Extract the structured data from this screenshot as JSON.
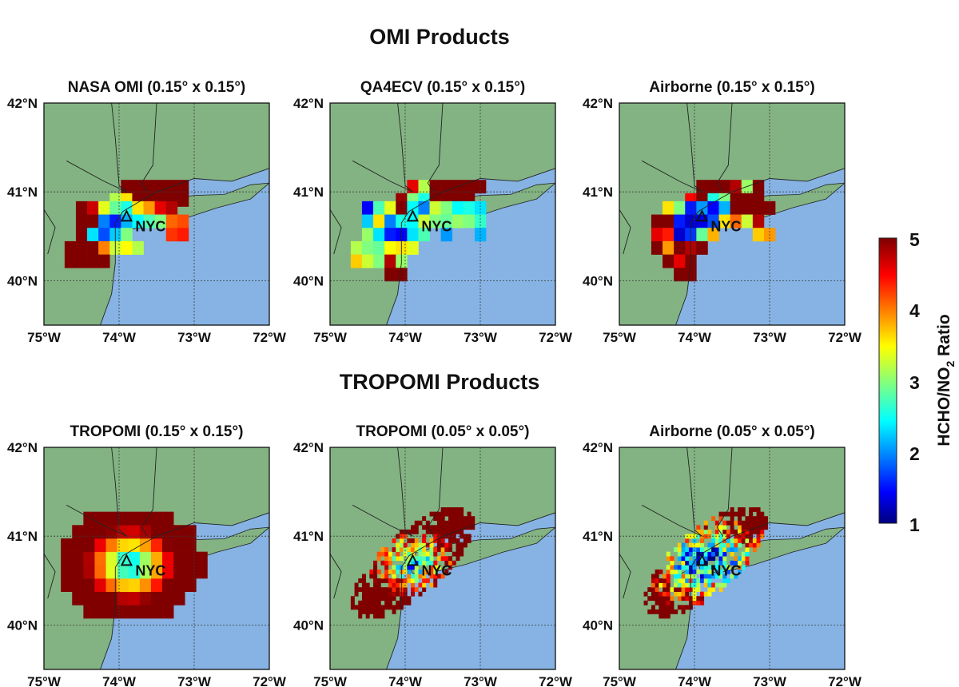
{
  "figure": {
    "colors": {
      "land": "#83b383",
      "water": "#86b3e3",
      "gridline": "#3a3a3a",
      "border": "#222222"
    }
  },
  "sections": [
    {
      "title": "OMI Products"
    },
    {
      "title": "TROPOMI Products"
    }
  ],
  "colorbar": {
    "label_main": "HCHO/NO",
    "label_sub": "2",
    "label_tail": " Ratio",
    "min": 1,
    "max": 5,
    "ticks": [
      "5",
      "4",
      "3",
      "2",
      "1"
    ],
    "colormap": "jet"
  },
  "chart_data": [
    {
      "type": "heatmap",
      "title": "NASA OMI (0.15° x 0.15°)",
      "xlim": [
        -75,
        -72
      ],
      "ylim": [
        39.5,
        42
      ],
      "x_ticks": [
        "75°W",
        "74°W",
        "73°W",
        "72°W"
      ],
      "y_ticks": [
        "42°N",
        "41°N",
        "40°N"
      ],
      "marker_label": "NYC",
      "marker": {
        "lon": -73.9,
        "lat": 40.72
      },
      "cell_deg": 0.15,
      "cells": [
        [
          -73.9,
          41.06,
          5
        ],
        [
          -73.75,
          41.06,
          5
        ],
        [
          -73.6,
          41.06,
          5
        ],
        [
          -73.45,
          41.06,
          5
        ],
        [
          -73.3,
          41.06,
          5
        ],
        [
          -73.15,
          41.06,
          5
        ],
        [
          -74.05,
          40.91,
          3.2
        ],
        [
          -73.9,
          40.91,
          3.6
        ],
        [
          -73.75,
          40.91,
          5
        ],
        [
          -73.6,
          40.91,
          5
        ],
        [
          -73.45,
          40.91,
          5
        ],
        [
          -73.3,
          40.91,
          5
        ],
        [
          -73.15,
          40.91,
          5
        ],
        [
          -74.5,
          40.82,
          5
        ],
        [
          -74.35,
          40.82,
          4.7
        ],
        [
          -74.2,
          40.82,
          3.4
        ],
        [
          -74.05,
          40.82,
          2.9
        ],
        [
          -73.9,
          40.82,
          2.6
        ],
        [
          -73.75,
          40.82,
          3.6
        ],
        [
          -73.6,
          40.82,
          3.9
        ],
        [
          -73.45,
          40.82,
          4.6
        ],
        [
          -73.3,
          40.82,
          4.8
        ],
        [
          -74.5,
          40.67,
          5
        ],
        [
          -74.35,
          40.67,
          5
        ],
        [
          -74.2,
          40.67,
          2.0
        ],
        [
          -74.05,
          40.67,
          1.6
        ],
        [
          -73.9,
          40.67,
          2.2
        ],
        [
          -73.75,
          40.67,
          2.5
        ],
        [
          -73.6,
          40.67,
          2.8
        ],
        [
          -73.45,
          40.67,
          3.0
        ],
        [
          -73.3,
          40.67,
          4.1
        ],
        [
          -73.15,
          40.67,
          4.2
        ],
        [
          -74.5,
          40.52,
          5
        ],
        [
          -74.35,
          40.52,
          2.4
        ],
        [
          -74.2,
          40.52,
          1.8
        ],
        [
          -74.05,
          40.52,
          2.3
        ],
        [
          -73.9,
          40.52,
          3.0
        ],
        [
          -73.3,
          40.52,
          4.3
        ],
        [
          -73.15,
          40.52,
          4.4
        ],
        [
          -74.65,
          40.37,
          5
        ],
        [
          -74.5,
          40.37,
          5
        ],
        [
          -74.35,
          40.37,
          5
        ],
        [
          -74.2,
          40.37,
          4.0
        ],
        [
          -74.05,
          40.37,
          3.3
        ],
        [
          -73.9,
          40.37,
          3.5
        ],
        [
          -73.75,
          40.37,
          3.2
        ],
        [
          -74.65,
          40.22,
          5
        ],
        [
          -74.5,
          40.22,
          5
        ],
        [
          -74.35,
          40.22,
          5
        ],
        [
          -74.2,
          40.22,
          5
        ]
      ]
    },
    {
      "type": "heatmap",
      "title": "QA4ECV (0.15° x 0.15°)",
      "xlim": [
        -75,
        -72
      ],
      "ylim": [
        39.5,
        42
      ],
      "x_ticks": [
        "75°W",
        "74°W",
        "73°W",
        "72°W"
      ],
      "y_ticks": [
        "42°N",
        "41°N",
        "40°N"
      ],
      "marker_label": "NYC",
      "marker": {
        "lon": -73.9,
        "lat": 40.72
      },
      "cell_deg": 0.15,
      "cells": [
        [
          -73.9,
          41.06,
          4.6
        ],
        [
          -73.75,
          41.06,
          3.2
        ],
        [
          -73.6,
          41.06,
          5
        ],
        [
          -73.45,
          41.06,
          5
        ],
        [
          -73.3,
          41.06,
          5
        ],
        [
          -73.15,
          41.06,
          5
        ],
        [
          -73.0,
          41.06,
          5
        ],
        [
          -74.05,
          40.91,
          4.9
        ],
        [
          -73.9,
          40.91,
          3.0
        ],
        [
          -73.75,
          40.91,
          2.6
        ],
        [
          -73.6,
          40.91,
          5
        ],
        [
          -73.45,
          40.91,
          5
        ],
        [
          -73.3,
          40.91,
          5
        ],
        [
          -73.15,
          40.91,
          5
        ],
        [
          -74.5,
          40.82,
          1.5
        ],
        [
          -74.35,
          40.82,
          2.8
        ],
        [
          -74.2,
          40.82,
          3.4
        ],
        [
          -74.05,
          40.82,
          5
        ],
        [
          -73.9,
          40.82,
          2.5
        ],
        [
          -73.75,
          40.82,
          2.0
        ],
        [
          -73.6,
          40.82,
          3.3
        ],
        [
          -73.45,
          40.82,
          3.0
        ],
        [
          -73.3,
          40.82,
          2.5
        ],
        [
          -73.15,
          40.82,
          2.6
        ],
        [
          -73.0,
          40.82,
          2.4
        ],
        [
          -74.5,
          40.67,
          2.3
        ],
        [
          -74.35,
          40.67,
          3.6
        ],
        [
          -74.2,
          40.67,
          2.0
        ],
        [
          -74.05,
          40.67,
          2.6
        ],
        [
          -73.9,
          40.67,
          2.5
        ],
        [
          -73.75,
          40.67,
          3.3
        ],
        [
          -73.6,
          40.67,
          3.0
        ],
        [
          -73.45,
          40.67,
          2.9
        ],
        [
          -73.3,
          40.67,
          3.1
        ],
        [
          -73.15,
          40.67,
          3.0
        ],
        [
          -73.0,
          40.67,
          2.7
        ],
        [
          -74.5,
          40.52,
          3.1
        ],
        [
          -74.35,
          40.52,
          2.4
        ],
        [
          -74.2,
          40.52,
          1.6
        ],
        [
          -74.05,
          40.52,
          1.5
        ],
        [
          -73.9,
          40.52,
          2.4
        ],
        [
          -73.75,
          40.52,
          2.8
        ],
        [
          -73.45,
          40.52,
          2.1
        ],
        [
          -73.0,
          40.52,
          2.2
        ],
        [
          -74.65,
          40.37,
          3.2
        ],
        [
          -74.5,
          40.37,
          3.0
        ],
        [
          -74.35,
          40.37,
          2.9
        ],
        [
          -74.2,
          40.37,
          3.5
        ],
        [
          -74.05,
          40.37,
          3.6
        ],
        [
          -73.9,
          40.37,
          3.4
        ],
        [
          -74.65,
          40.22,
          3.7
        ],
        [
          -74.5,
          40.22,
          3.3
        ],
        [
          -74.35,
          40.22,
          3.0
        ],
        [
          -74.2,
          40.22,
          4.8
        ],
        [
          -74.05,
          40.22,
          3.1
        ],
        [
          -74.2,
          40.07,
          5
        ],
        [
          -74.05,
          40.07,
          5
        ]
      ]
    },
    {
      "type": "heatmap",
      "title": "Airborne (0.15° x 0.15°)",
      "xlim": [
        -75,
        -72
      ],
      "ylim": [
        39.5,
        42
      ],
      "x_ticks": [
        "75°W",
        "74°W",
        "73°W",
        "72°W"
      ],
      "y_ticks": [
        "42°N",
        "41°N",
        "40°N"
      ],
      "marker_label": "NYC",
      "marker": {
        "lon": -73.9,
        "lat": 40.72
      },
      "cell_deg": 0.15,
      "cells": [
        [
          -73.9,
          41.06,
          5
        ],
        [
          -73.75,
          41.06,
          5
        ],
        [
          -73.6,
          41.06,
          5
        ],
        [
          -73.45,
          41.06,
          4.8
        ],
        [
          -73.3,
          41.06,
          3.1
        ],
        [
          -73.15,
          41.06,
          5
        ],
        [
          -74.05,
          40.91,
          4.5
        ],
        [
          -73.9,
          40.91,
          5
        ],
        [
          -73.75,
          40.91,
          2.6
        ],
        [
          -73.6,
          40.91,
          3.0
        ],
        [
          -73.45,
          40.91,
          5
        ],
        [
          -73.3,
          40.91,
          5
        ],
        [
          -73.15,
          40.91,
          5
        ],
        [
          -74.35,
          40.82,
          3.6
        ],
        [
          -74.2,
          40.82,
          3.0
        ],
        [
          -74.05,
          40.82,
          1.6
        ],
        [
          -73.9,
          40.82,
          2.1
        ],
        [
          -73.75,
          40.82,
          1.5
        ],
        [
          -73.6,
          40.82,
          2.2
        ],
        [
          -73.45,
          40.82,
          5
        ],
        [
          -73.3,
          40.82,
          5
        ],
        [
          -73.15,
          40.82,
          5
        ],
        [
          -73.0,
          40.82,
          5
        ],
        [
          -74.5,
          40.67,
          5
        ],
        [
          -74.35,
          40.67,
          5
        ],
        [
          -74.2,
          40.67,
          1.6
        ],
        [
          -74.05,
          40.67,
          1.3
        ],
        [
          -73.9,
          40.67,
          1.4
        ],
        [
          -73.75,
          40.67,
          1.8
        ],
        [
          -73.6,
          40.67,
          3.6
        ],
        [
          -73.45,
          40.67,
          4.1
        ],
        [
          -73.3,
          40.67,
          3.3
        ],
        [
          -73.15,
          40.67,
          4.8
        ],
        [
          -74.5,
          40.52,
          4.6
        ],
        [
          -74.35,
          40.52,
          4.4
        ],
        [
          -74.2,
          40.52,
          1.3
        ],
        [
          -74.05,
          40.52,
          1.7
        ],
        [
          -73.9,
          40.52,
          2.9
        ],
        [
          -73.75,
          40.52,
          3.8
        ],
        [
          -73.15,
          40.52,
          3.7
        ],
        [
          -73.0,
          40.52,
          3.9
        ],
        [
          -74.5,
          40.37,
          5
        ],
        [
          -74.35,
          40.37,
          3.9
        ],
        [
          -74.2,
          40.37,
          5
        ],
        [
          -74.05,
          40.37,
          4.8
        ],
        [
          -73.9,
          40.37,
          5
        ],
        [
          -74.35,
          40.22,
          5
        ],
        [
          -74.2,
          40.22,
          4.6
        ],
        [
          -74.05,
          40.22,
          5
        ],
        [
          -74.2,
          40.07,
          5
        ],
        [
          -74.05,
          40.07,
          5
        ]
      ]
    },
    {
      "type": "heatmap",
      "title": "TROPOMI (0.15° x 0.15°)",
      "xlim": [
        -75,
        -72
      ],
      "ylim": [
        39.5,
        42
      ],
      "x_ticks": [
        "75°W",
        "74°W",
        "73°W",
        "72°W"
      ],
      "y_ticks": [
        "42°N",
        "41°N",
        "40°N"
      ],
      "marker_label": "NYC",
      "marker": {
        "lon": -73.9,
        "lat": 40.72
      },
      "field": {
        "center_lon": -73.85,
        "center_lat": 40.68,
        "gradient_lon": 2.1,
        "gradient_lat": 3.0,
        "min_ratio": 2.0,
        "lon_range": [
          -74.7,
          -72.8
        ],
        "lat_range": [
          40.0,
          41.25
        ],
        "cell_deg": 0.15,
        "noise": 0
      }
    },
    {
      "type": "heatmap",
      "title": "TROPOMI (0.05° x 0.05°)",
      "xlim": [
        -75,
        -72
      ],
      "ylim": [
        39.5,
        42
      ],
      "x_ticks": [
        "75°W",
        "74°W",
        "73°W",
        "72°W"
      ],
      "y_ticks": [
        "42°N",
        "41°N",
        "40°N"
      ],
      "marker_label": "NYC",
      "marker": {
        "lon": -73.9,
        "lat": 40.72
      },
      "field": {
        "center_lon": -73.9,
        "center_lat": 40.7,
        "gradient_lon": 2.6,
        "gradient_lat": 4.0,
        "min_ratio": 1.8,
        "lon_range": [
          -74.7,
          -72.9
        ],
        "lat_range": [
          39.95,
          41.35
        ],
        "cell_deg": 0.05,
        "noise": 0.9,
        "plume": true
      }
    },
    {
      "type": "heatmap",
      "title": "Airborne (0.05° x 0.05°)",
      "xlim": [
        -75,
        -72
      ],
      "ylim": [
        39.5,
        42
      ],
      "x_ticks": [
        "75°W",
        "74°W",
        "73°W",
        "72°W"
      ],
      "y_ticks": [
        "42°N",
        "41°N",
        "40°N"
      ],
      "marker_label": "NYC",
      "marker": {
        "lon": -73.9,
        "lat": 40.72
      },
      "field": {
        "center_lon": -73.85,
        "center_lat": 40.72,
        "gradient_lon": 1.9,
        "gradient_lat": 3.6,
        "min_ratio": 1.0,
        "lon_range": [
          -74.65,
          -72.8
        ],
        "lat_range": [
          40.05,
          41.35
        ],
        "cell_deg": 0.05,
        "noise": 1.2,
        "plume": true
      }
    }
  ]
}
